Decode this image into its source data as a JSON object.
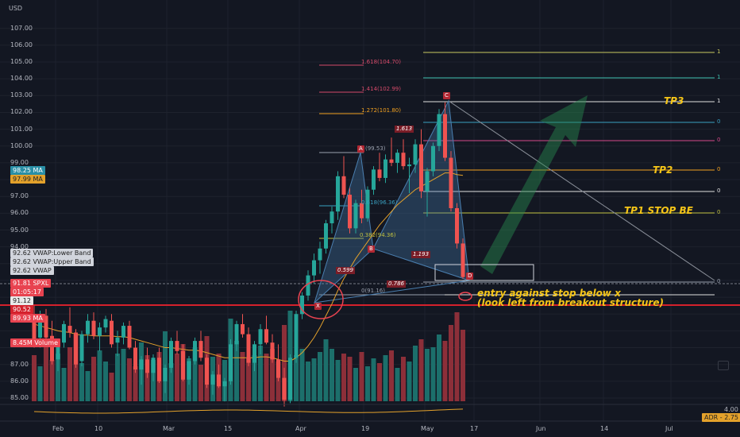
{
  "currency": "USD",
  "y_ticks": [
    "107.00",
    "106.00",
    "105.00",
    "104.00",
    "103.00",
    "102.00",
    "101.00",
    "100.00",
    "99.00",
    "98.00",
    "97.00",
    "96.00",
    "95.00",
    "94.00",
    "87.00",
    "86.00",
    "85.00"
  ],
  "x_ticks": [
    "Feb",
    "10",
    "Mar",
    "15",
    "Apr",
    "19",
    "May",
    "17",
    "Jun",
    "14",
    "Jul"
  ],
  "badges": {
    "ma1": {
      "value": "98.25",
      "label": "MA"
    },
    "ma2": {
      "value": "97.99",
      "label": "MA"
    },
    "vwap_lower": {
      "value": "92.62",
      "label": "VWAP:Lower Band"
    },
    "vwap_upper": {
      "value": "92.62",
      "label": "VWAP:Upper Band"
    },
    "vwap": {
      "value": "92.62",
      "label": "VWAP"
    },
    "price": {
      "value": "91.81",
      "symbol": "SPXL",
      "countdown": "01:05:17"
    },
    "level1": {
      "value": "91.12"
    },
    "level2": {
      "value": "90.52"
    },
    "ma3": {
      "value": "89.93",
      "label": "MA"
    },
    "volume": {
      "value": "8.45M",
      "label": "Volume"
    },
    "adr": {
      "label": "ADR",
      "value": "2.75"
    },
    "adr_axis": "4.00"
  },
  "fib_levels": [
    {
      "label": "1.618(104.70)",
      "color": "#d64a6a"
    },
    {
      "label": "1.414(102.99)",
      "color": "#d64a6a"
    },
    {
      "label": "1.272(101.80)",
      "color": "#f0a020"
    },
    {
      "label": "(99.53)",
      "color": "#9aa0ad"
    },
    {
      "label": "0.618(96.36)",
      "color": "#3aa0c0"
    },
    {
      "label": "0.382(94.36)",
      "color": "#c0c040"
    },
    {
      "label": "0(91.16)",
      "color": "#9aa0ad"
    }
  ],
  "pattern_points": [
    "A",
    "B",
    "C",
    "D",
    "X"
  ],
  "ratios": [
    "1.613",
    "0.599",
    "1.193",
    "0.786"
  ],
  "annotations": {
    "tp3": "TP3",
    "tp2": "TP2",
    "tp1": "TP1 STOP BE",
    "entry1": "entry against stop below x",
    "entry2": "(look left from breakout structure)"
  },
  "right_level_labels": [
    "1",
    "1",
    "1",
    "0",
    "0",
    "0",
    "0",
    "0",
    "0"
  ],
  "chart_data": {
    "type": "candlestick",
    "symbol": "SPXL",
    "ylim": [
      85,
      107.5
    ],
    "ohlc": [
      [
        89.5,
        90.5,
        88.0,
        88.3
      ],
      [
        88.6,
        90.2,
        88.0,
        89.8
      ],
      [
        89.9,
        90.3,
        88.3,
        88.6
      ],
      [
        88.7,
        89.6,
        87.0,
        87.2
      ],
      [
        87.3,
        88.5,
        86.6,
        88.3
      ],
      [
        88.3,
        89.6,
        88.0,
        89.4
      ],
      [
        89.3,
        90.4,
        88.6,
        88.9
      ],
      [
        88.9,
        89.1,
        86.8,
        87.0
      ],
      [
        87.2,
        89.0,
        86.9,
        88.8
      ],
      [
        88.8,
        90.0,
        88.3,
        89.6
      ],
      [
        89.6,
        90.1,
        88.5,
        88.7
      ],
      [
        88.7,
        89.5,
        87.8,
        89.2
      ],
      [
        89.2,
        89.9,
        88.9,
        89.7
      ],
      [
        89.6,
        90.0,
        88.0,
        88.2
      ],
      [
        88.3,
        89.0,
        87.5,
        88.6
      ],
      [
        88.6,
        89.5,
        88.2,
        89.3
      ],
      [
        89.3,
        89.6,
        87.9,
        88.0
      ],
      [
        88.0,
        88.4,
        86.5,
        86.7
      ],
      [
        86.7,
        87.5,
        85.8,
        87.3
      ],
      [
        87.3,
        88.0,
        86.2,
        86.5
      ],
      [
        86.5,
        87.6,
        86.0,
        87.4
      ],
      [
        87.4,
        88.0,
        85.9,
        86.0
      ],
      [
        86.0,
        87.0,
        85.3,
        86.8
      ],
      [
        86.8,
        88.6,
        86.5,
        88.4
      ],
      [
        88.4,
        89.0,
        87.6,
        87.8
      ],
      [
        87.8,
        88.2,
        86.0,
        86.1
      ],
      [
        86.1,
        87.5,
        85.8,
        87.2
      ],
      [
        87.2,
        88.6,
        87.0,
        88.4
      ],
      [
        88.4,
        89.0,
        87.2,
        87.4
      ],
      [
        87.4,
        87.6,
        85.6,
        85.8
      ],
      [
        85.8,
        86.6,
        85.2,
        86.4
      ],
      [
        86.4,
        87.0,
        85.6,
        85.7
      ],
      [
        85.7,
        86.2,
        84.8,
        86.0
      ],
      [
        86.0,
        88.5,
        85.8,
        88.2
      ],
      [
        88.2,
        89.6,
        87.8,
        89.4
      ],
      [
        89.4,
        90.0,
        88.6,
        88.8
      ],
      [
        88.8,
        89.2,
        86.9,
        87.1
      ],
      [
        87.1,
        88.4,
        86.6,
        88.2
      ],
      [
        88.2,
        89.4,
        87.6,
        89.1
      ],
      [
        89.1,
        89.9,
        88.2,
        88.3
      ],
      [
        88.3,
        88.8,
        87.1,
        87.3
      ],
      [
        87.3,
        88.2,
        86.0,
        86.2
      ],
      [
        86.2,
        86.8,
        84.5,
        84.9
      ],
      [
        84.9,
        87.6,
        84.7,
        87.4
      ],
      [
        87.4,
        90.2,
        87.1,
        90.0
      ],
      [
        90.0,
        91.3,
        89.7,
        91.1
      ],
      [
        91.1,
        92.6,
        90.8,
        92.3
      ],
      [
        92.3,
        93.6,
        91.8,
        93.2
      ],
      [
        93.2,
        94.3,
        92.4,
        93.9
      ],
      [
        93.9,
        95.6,
        93.6,
        95.4
      ],
      [
        95.4,
        96.4,
        94.8,
        96.1
      ],
      [
        96.1,
        98.5,
        95.6,
        98.2
      ],
      [
        98.2,
        99.4,
        96.9,
        97.1
      ],
      [
        97.1,
        97.5,
        94.8,
        95.1
      ],
      [
        95.1,
        96.8,
        94.8,
        96.6
      ],
      [
        96.6,
        97.4,
        95.4,
        95.7
      ],
      [
        95.7,
        97.6,
        95.5,
        97.4
      ],
      [
        97.4,
        98.8,
        97.1,
        98.6
      ],
      [
        98.6,
        99.6,
        97.9,
        98.1
      ],
      [
        98.1,
        99.5,
        97.8,
        99.2
      ],
      [
        99.2,
        100.5,
        98.8,
        99.0
      ],
      [
        99.0,
        99.8,
        98.4,
        99.6
      ],
      [
        99.6,
        100.4,
        98.6,
        98.8
      ],
      [
        98.8,
        99.3,
        97.2,
        98.9
      ],
      [
        98.9,
        100.4,
        98.4,
        100.1
      ],
      [
        100.1,
        101.0,
        96.9,
        97.3
      ],
      [
        97.3,
        98.7,
        95.8,
        98.5
      ],
      [
        98.5,
        100.2,
        98.2,
        100.0
      ],
      [
        100.0,
        102.2,
        99.7,
        101.9
      ],
      [
        101.9,
        102.6,
        99.1,
        99.3
      ],
      [
        99.3,
        99.7,
        96.1,
        96.3
      ],
      [
        96.3,
        96.6,
        93.9,
        94.2
      ],
      [
        94.2,
        94.5,
        92.1,
        92.2
      ]
    ],
    "volume": [
      29,
      22,
      38,
      26,
      30,
      21,
      34,
      42,
      24,
      19,
      28,
      32,
      25,
      18,
      30,
      33,
      27,
      22,
      37,
      29,
      26,
      31,
      44,
      24,
      30,
      36,
      27,
      34,
      23,
      41,
      28,
      30,
      26,
      52,
      38,
      31,
      27,
      29,
      35,
      30,
      33,
      25,
      48,
      57,
      29,
      33,
      25,
      27,
      31,
      39,
      33,
      26,
      30,
      28,
      21,
      31,
      22,
      27,
      24,
      29,
      32,
      21,
      28,
      25,
      35,
      39,
      33,
      34,
      42,
      38,
      48,
      56,
      45
    ],
    "moving_average": [
      89.4,
      89.3,
      89.2,
      89.1,
      89.0,
      88.95,
      88.9,
      88.8,
      88.75,
      88.75,
      88.7,
      88.7,
      88.7,
      88.7,
      88.65,
      88.65,
      88.6,
      88.5,
      88.4,
      88.3,
      88.2,
      88.1,
      88.0,
      88.0,
      87.95,
      87.9,
      87.85,
      87.85,
      87.8,
      87.7,
      87.6,
      87.5,
      87.4,
      87.4,
      87.4,
      87.4,
      87.4,
      87.4,
      87.45,
      87.45,
      87.4,
      87.3,
      87.2,
      87.2,
      87.4,
      87.7,
      88.1,
      88.6,
      89.2,
      89.9,
      90.6,
      91.4,
      92.1,
      92.7,
      93.3,
      93.8,
      94.3,
      94.8,
      95.3,
      95.7,
      96.1,
      96.5,
      96.8,
      97.1,
      97.4,
      97.6,
      97.8,
      98.0,
      98.2,
      98.4,
      98.4,
      98.3,
      98.25
    ]
  }
}
